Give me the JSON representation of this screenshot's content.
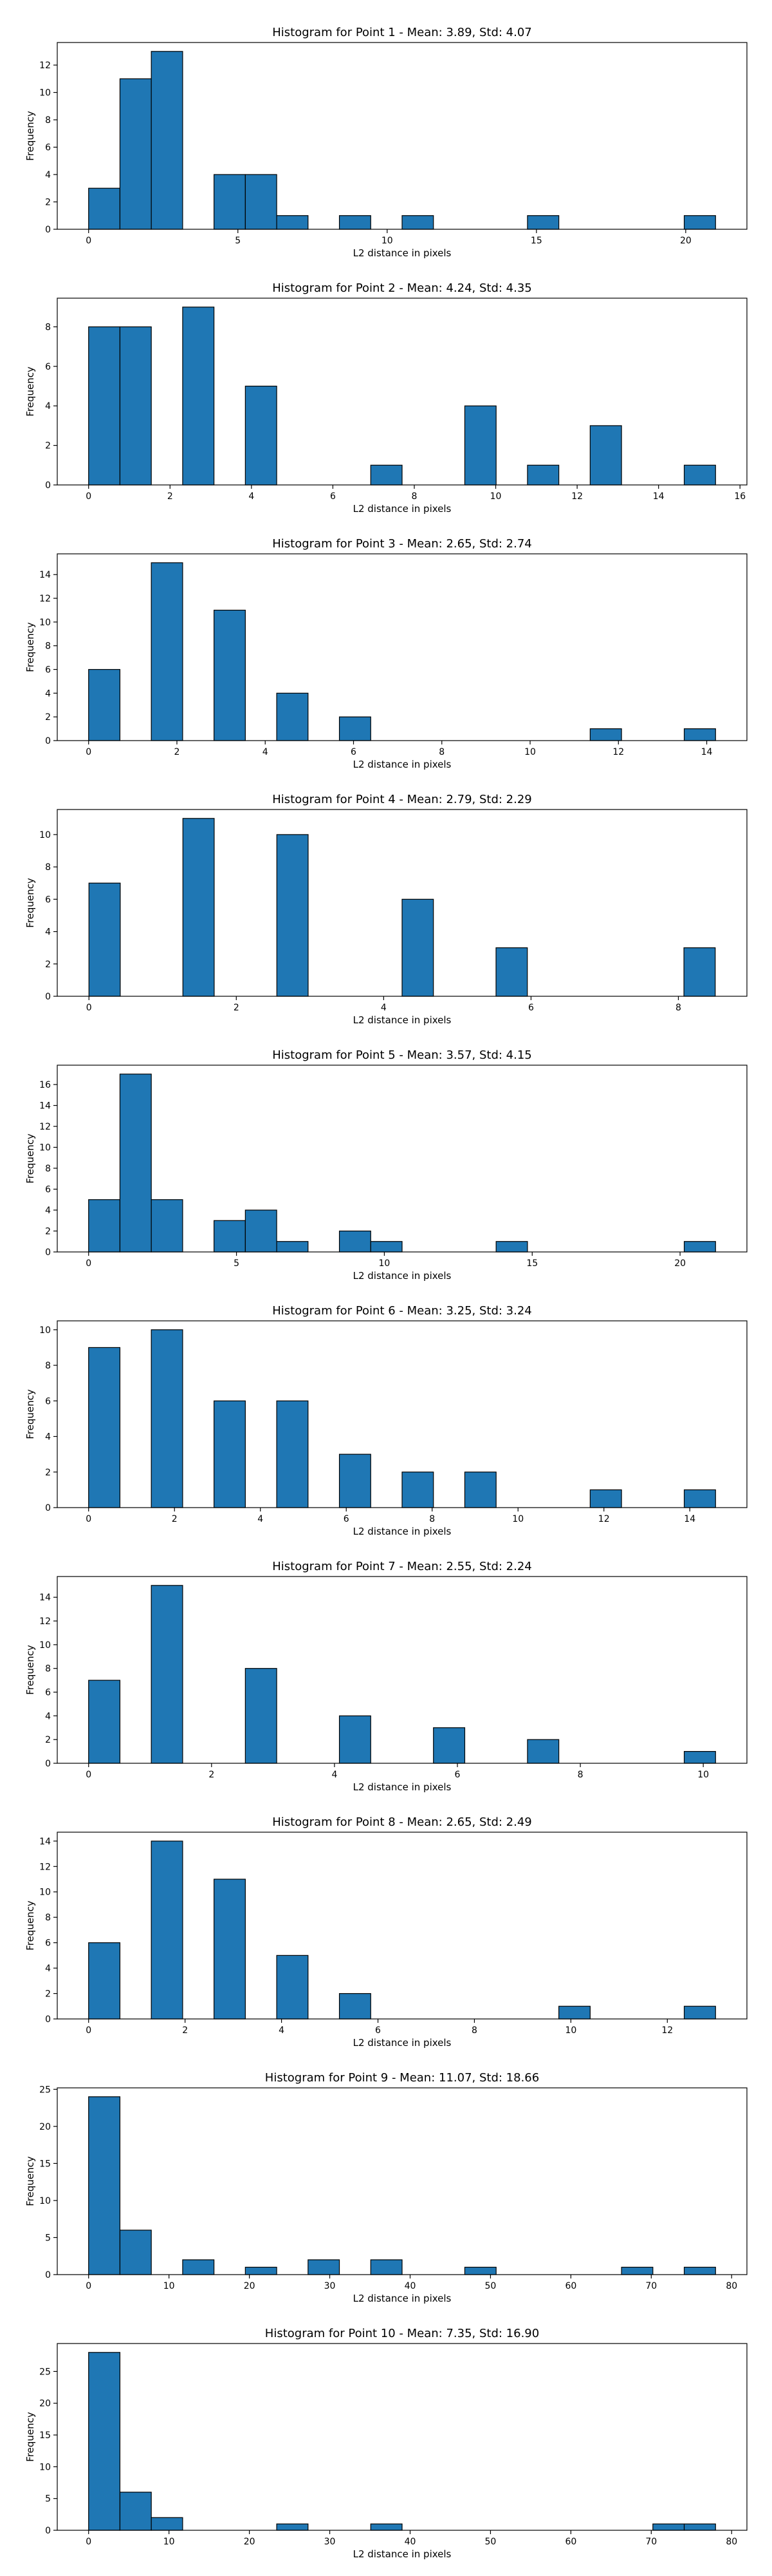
{
  "chart_data": [
    {
      "type": "bar",
      "title": "Histogram for Point 1 - Mean: 3.89, Std: 4.07",
      "xlabel": "L2 distance in pixels",
      "ylabel": "Frequency",
      "xlim": [
        -1.05,
        22.05
      ],
      "ylim": [
        0,
        13.65
      ],
      "xticks": [
        0,
        5,
        10,
        15,
        20
      ],
      "xtick_labels": [
        "0",
        "5",
        "10",
        "15",
        "20"
      ],
      "yticks": [
        0,
        2,
        4,
        6,
        8,
        10,
        12
      ],
      "ytick_labels": [
        "0",
        "2",
        "4",
        "6",
        "8",
        "10",
        "12"
      ],
      "bin_edges": [
        0,
        1.05,
        2.1,
        3.15,
        4.2,
        5.25,
        6.3,
        7.35,
        8.4,
        9.45,
        10.5,
        11.55,
        12.6,
        13.65,
        14.7,
        15.75,
        16.8,
        17.85,
        18.9,
        19.95,
        21.0
      ],
      "values": [
        3,
        11,
        13,
        0,
        4,
        4,
        1,
        0,
        1,
        0,
        1,
        0,
        0,
        0,
        1,
        0,
        0,
        0,
        0,
        1
      ]
    },
    {
      "type": "bar",
      "title": "Histogram for Point 2 - Mean: 4.24, Std: 4.35",
      "xlabel": "L2 distance in pixels",
      "ylabel": "Frequency",
      "xlim": [
        -0.77,
        16.17
      ],
      "ylim": [
        0,
        9.45
      ],
      "xticks": [
        0,
        2,
        4,
        6,
        8,
        10,
        12,
        14,
        16
      ],
      "xtick_labels": [
        "0",
        "2",
        "4",
        "6",
        "8",
        "10",
        "12",
        "14",
        "16"
      ],
      "yticks": [
        0,
        2,
        4,
        6,
        8
      ],
      "ytick_labels": [
        "0",
        "2",
        "4",
        "6",
        "8"
      ],
      "bin_edges": [
        0,
        0.77,
        1.54,
        2.31,
        3.08,
        3.85,
        4.62,
        5.39,
        6.16,
        6.93,
        7.7,
        8.47,
        9.24,
        10.01,
        10.78,
        11.55,
        12.32,
        13.09,
        13.86,
        14.63,
        15.4
      ],
      "values": [
        8,
        8,
        0,
        9,
        0,
        5,
        0,
        0,
        0,
        1,
        0,
        0,
        4,
        0,
        1,
        0,
        3,
        0,
        0,
        1
      ]
    },
    {
      "type": "bar",
      "title": "Histogram for Point 3 - Mean: 2.65, Std: 2.74",
      "xlabel": "L2 distance in pixels",
      "ylabel": "Frequency",
      "xlim": [
        -0.71,
        14.91
      ],
      "ylim": [
        0,
        15.75
      ],
      "xticks": [
        0,
        2,
        4,
        6,
        8,
        10,
        12,
        14
      ],
      "xtick_labels": [
        "0",
        "2",
        "4",
        "6",
        "8",
        "10",
        "12",
        "14"
      ],
      "yticks": [
        0,
        2,
        4,
        6,
        8,
        10,
        12,
        14
      ],
      "ytick_labels": [
        "0",
        "2",
        "4",
        "6",
        "8",
        "10",
        "12",
        "14"
      ],
      "bin_edges": [
        0,
        0.71,
        1.42,
        2.13,
        2.84,
        3.55,
        4.26,
        4.97,
        5.68,
        6.39,
        7.1,
        7.81,
        8.52,
        9.23,
        9.94,
        10.65,
        11.36,
        12.07,
        12.78,
        13.49,
        14.2
      ],
      "values": [
        6,
        0,
        15,
        0,
        11,
        0,
        4,
        0,
        2,
        0,
        0,
        0,
        0,
        0,
        0,
        0,
        1,
        0,
        0,
        1
      ]
    },
    {
      "type": "bar",
      "title": "Histogram for Point 4 - Mean: 2.79, Std: 2.29",
      "xlabel": "L2 distance in pixels",
      "ylabel": "Frequency",
      "xlim": [
        -0.43,
        8.93
      ],
      "ylim": [
        0,
        11.55
      ],
      "xticks": [
        0,
        2,
        4,
        6,
        8
      ],
      "xtick_labels": [
        "0",
        "2",
        "4",
        "6",
        "8"
      ],
      "yticks": [
        0,
        2,
        4,
        6,
        8,
        10
      ],
      "ytick_labels": [
        "0",
        "2",
        "4",
        "6",
        "8",
        "10"
      ],
      "bin_edges": [
        0,
        0.425,
        0.85,
        1.275,
        1.7,
        2.125,
        2.55,
        2.975,
        3.4,
        3.825,
        4.25,
        4.675,
        5.1,
        5.525,
        5.95,
        6.375,
        6.8,
        7.225,
        7.65,
        8.075,
        8.5
      ],
      "values": [
        7,
        0,
        0,
        11,
        0,
        0,
        10,
        0,
        0,
        0,
        6,
        0,
        0,
        3,
        0,
        0,
        0,
        0,
        0,
        3
      ]
    },
    {
      "type": "bar",
      "title": "Histogram for Point 5 - Mean: 3.57, Std: 4.15",
      "xlabel": "L2 distance in pixels",
      "ylabel": "Frequency",
      "xlim": [
        -1.06,
        22.26
      ],
      "ylim": [
        0,
        17.85
      ],
      "xticks": [
        0,
        5,
        10,
        15,
        20
      ],
      "xtick_labels": [
        "0",
        "5",
        "10",
        "15",
        "20"
      ],
      "yticks": [
        0,
        2,
        4,
        6,
        8,
        10,
        12,
        14,
        16
      ],
      "ytick_labels": [
        "0",
        "2",
        "4",
        "6",
        "8",
        "10",
        "12",
        "14",
        "16"
      ],
      "bin_edges": [
        0,
        1.06,
        2.12,
        3.18,
        4.24,
        5.3,
        6.36,
        7.42,
        8.48,
        9.54,
        10.6,
        11.66,
        12.72,
        13.78,
        14.84,
        15.9,
        16.96,
        18.02,
        19.08,
        20.14,
        21.2
      ],
      "values": [
        5,
        17,
        5,
        0,
        3,
        4,
        1,
        0,
        2,
        1,
        0,
        0,
        0,
        1,
        0,
        0,
        0,
        0,
        0,
        1
      ]
    },
    {
      "type": "bar",
      "title": "Histogram for Point 6 - Mean: 3.25, Std: 3.24",
      "xlabel": "L2 distance in pixels",
      "ylabel": "Frequency",
      "xlim": [
        -0.73,
        15.33
      ],
      "ylim": [
        0,
        10.5
      ],
      "xticks": [
        0,
        2,
        4,
        6,
        8,
        10,
        12,
        14
      ],
      "xtick_labels": [
        "0",
        "2",
        "4",
        "6",
        "8",
        "10",
        "12",
        "14"
      ],
      "yticks": [
        0,
        2,
        4,
        6,
        8,
        10
      ],
      "ytick_labels": [
        "0",
        "2",
        "4",
        "6",
        "8",
        "10"
      ],
      "bin_edges": [
        0,
        0.73,
        1.46,
        2.19,
        2.92,
        3.65,
        4.38,
        5.11,
        5.84,
        6.57,
        7.3,
        8.03,
        8.76,
        9.49,
        10.22,
        10.95,
        11.68,
        12.41,
        13.14,
        13.87,
        14.6
      ],
      "values": [
        9,
        0,
        10,
        0,
        6,
        0,
        6,
        0,
        3,
        0,
        2,
        0,
        2,
        0,
        0,
        0,
        1,
        0,
        0,
        1
      ]
    },
    {
      "type": "bar",
      "title": "Histogram for Point 7 - Mean: 2.55, Std: 2.24",
      "xlabel": "L2 distance in pixels",
      "ylabel": "Frequency",
      "xlim": [
        -0.51,
        10.71
      ],
      "ylim": [
        0,
        15.75
      ],
      "xticks": [
        0,
        2,
        4,
        6,
        8,
        10
      ],
      "xtick_labels": [
        "0",
        "2",
        "4",
        "6",
        "8",
        "10"
      ],
      "yticks": [
        0,
        2,
        4,
        6,
        8,
        10,
        12,
        14
      ],
      "ytick_labels": [
        "0",
        "2",
        "4",
        "6",
        "8",
        "10",
        "12",
        "14"
      ],
      "bin_edges": [
        0,
        0.51,
        1.02,
        1.53,
        2.04,
        2.55,
        3.06,
        3.57,
        4.08,
        4.59,
        5.1,
        5.61,
        6.12,
        6.63,
        7.14,
        7.65,
        8.16,
        8.67,
        9.18,
        9.69,
        10.2
      ],
      "values": [
        7,
        0,
        15,
        0,
        0,
        8,
        0,
        0,
        4,
        0,
        0,
        3,
        0,
        0,
        2,
        0,
        0,
        0,
        0,
        1
      ]
    },
    {
      "type": "bar",
      "title": "Histogram for Point 8 - Mean: 2.65, Std: 2.49",
      "xlabel": "L2 distance in pixels",
      "ylabel": "Frequency",
      "xlim": [
        -0.65,
        13.65
      ],
      "ylim": [
        0,
        14.7
      ],
      "xticks": [
        0,
        2,
        4,
        6,
        8,
        10,
        12
      ],
      "xtick_labels": [
        "0",
        "2",
        "4",
        "6",
        "8",
        "10",
        "12"
      ],
      "yticks": [
        0,
        2,
        4,
        6,
        8,
        10,
        12,
        14
      ],
      "ytick_labels": [
        "0",
        "2",
        "4",
        "6",
        "8",
        "10",
        "12",
        "14"
      ],
      "bin_edges": [
        0,
        0.65,
        1.3,
        1.95,
        2.6,
        3.25,
        3.9,
        4.55,
        5.2,
        5.85,
        6.5,
        7.15,
        7.8,
        8.45,
        9.1,
        9.75,
        10.4,
        11.05,
        11.7,
        12.35,
        13.0
      ],
      "values": [
        6,
        0,
        14,
        0,
        11,
        0,
        5,
        0,
        2,
        0,
        0,
        0,
        0,
        0,
        0,
        1,
        0,
        0,
        0,
        1
      ]
    },
    {
      "type": "bar",
      "title": "Histogram for Point 9 - Mean: 11.07, Std: 18.66",
      "xlabel": "L2 distance in pixels",
      "ylabel": "Frequency",
      "xlim": [
        -3.9,
        81.9
      ],
      "ylim": [
        0,
        25.2
      ],
      "xticks": [
        0,
        10,
        20,
        30,
        40,
        50,
        60,
        70,
        80
      ],
      "xtick_labels": [
        "0",
        "10",
        "20",
        "30",
        "40",
        "50",
        "60",
        "70",
        "80"
      ],
      "yticks": [
        0,
        5,
        10,
        15,
        20,
        25
      ],
      "ytick_labels": [
        "0",
        "5",
        "10",
        "15",
        "20",
        "25"
      ],
      "bin_edges": [
        0,
        3.9,
        7.8,
        11.7,
        15.6,
        19.5,
        23.4,
        27.3,
        31.2,
        35.1,
        39.0,
        42.9,
        46.8,
        50.7,
        54.6,
        58.5,
        62.4,
        66.3,
        70.2,
        74.1,
        78.0
      ],
      "values": [
        24,
        6,
        0,
        2,
        0,
        1,
        0,
        2,
        0,
        2,
        0,
        0,
        1,
        0,
        0,
        0,
        0,
        1,
        0,
        1
      ]
    },
    {
      "type": "bar",
      "title": "Histogram for Point 10 - Mean: 7.35, Std: 16.90",
      "xlabel": "L2 distance in pixels",
      "ylabel": "Frequency",
      "xlim": [
        -3.9,
        81.9
      ],
      "ylim": [
        0,
        29.4
      ],
      "xticks": [
        0,
        10,
        20,
        30,
        40,
        50,
        60,
        70,
        80
      ],
      "xtick_labels": [
        "0",
        "10",
        "20",
        "30",
        "40",
        "50",
        "60",
        "70",
        "80"
      ],
      "yticks": [
        0,
        5,
        10,
        15,
        20,
        25
      ],
      "ytick_labels": [
        "0",
        "5",
        "10",
        "15",
        "20",
        "25"
      ],
      "bin_edges": [
        0,
        3.9,
        7.8,
        11.7,
        15.6,
        19.5,
        23.4,
        27.3,
        31.2,
        35.1,
        39.0,
        42.9,
        46.8,
        50.7,
        54.6,
        58.5,
        62.4,
        66.3,
        70.2,
        74.1,
        78.0
      ],
      "values": [
        28,
        6,
        2,
        0,
        0,
        0,
        1,
        0,
        0,
        1,
        0,
        0,
        0,
        0,
        0,
        0,
        0,
        0,
        1,
        1
      ]
    }
  ],
  "colors": {
    "bar_fill": "#1f77b4",
    "bar_edge": "#000000"
  }
}
